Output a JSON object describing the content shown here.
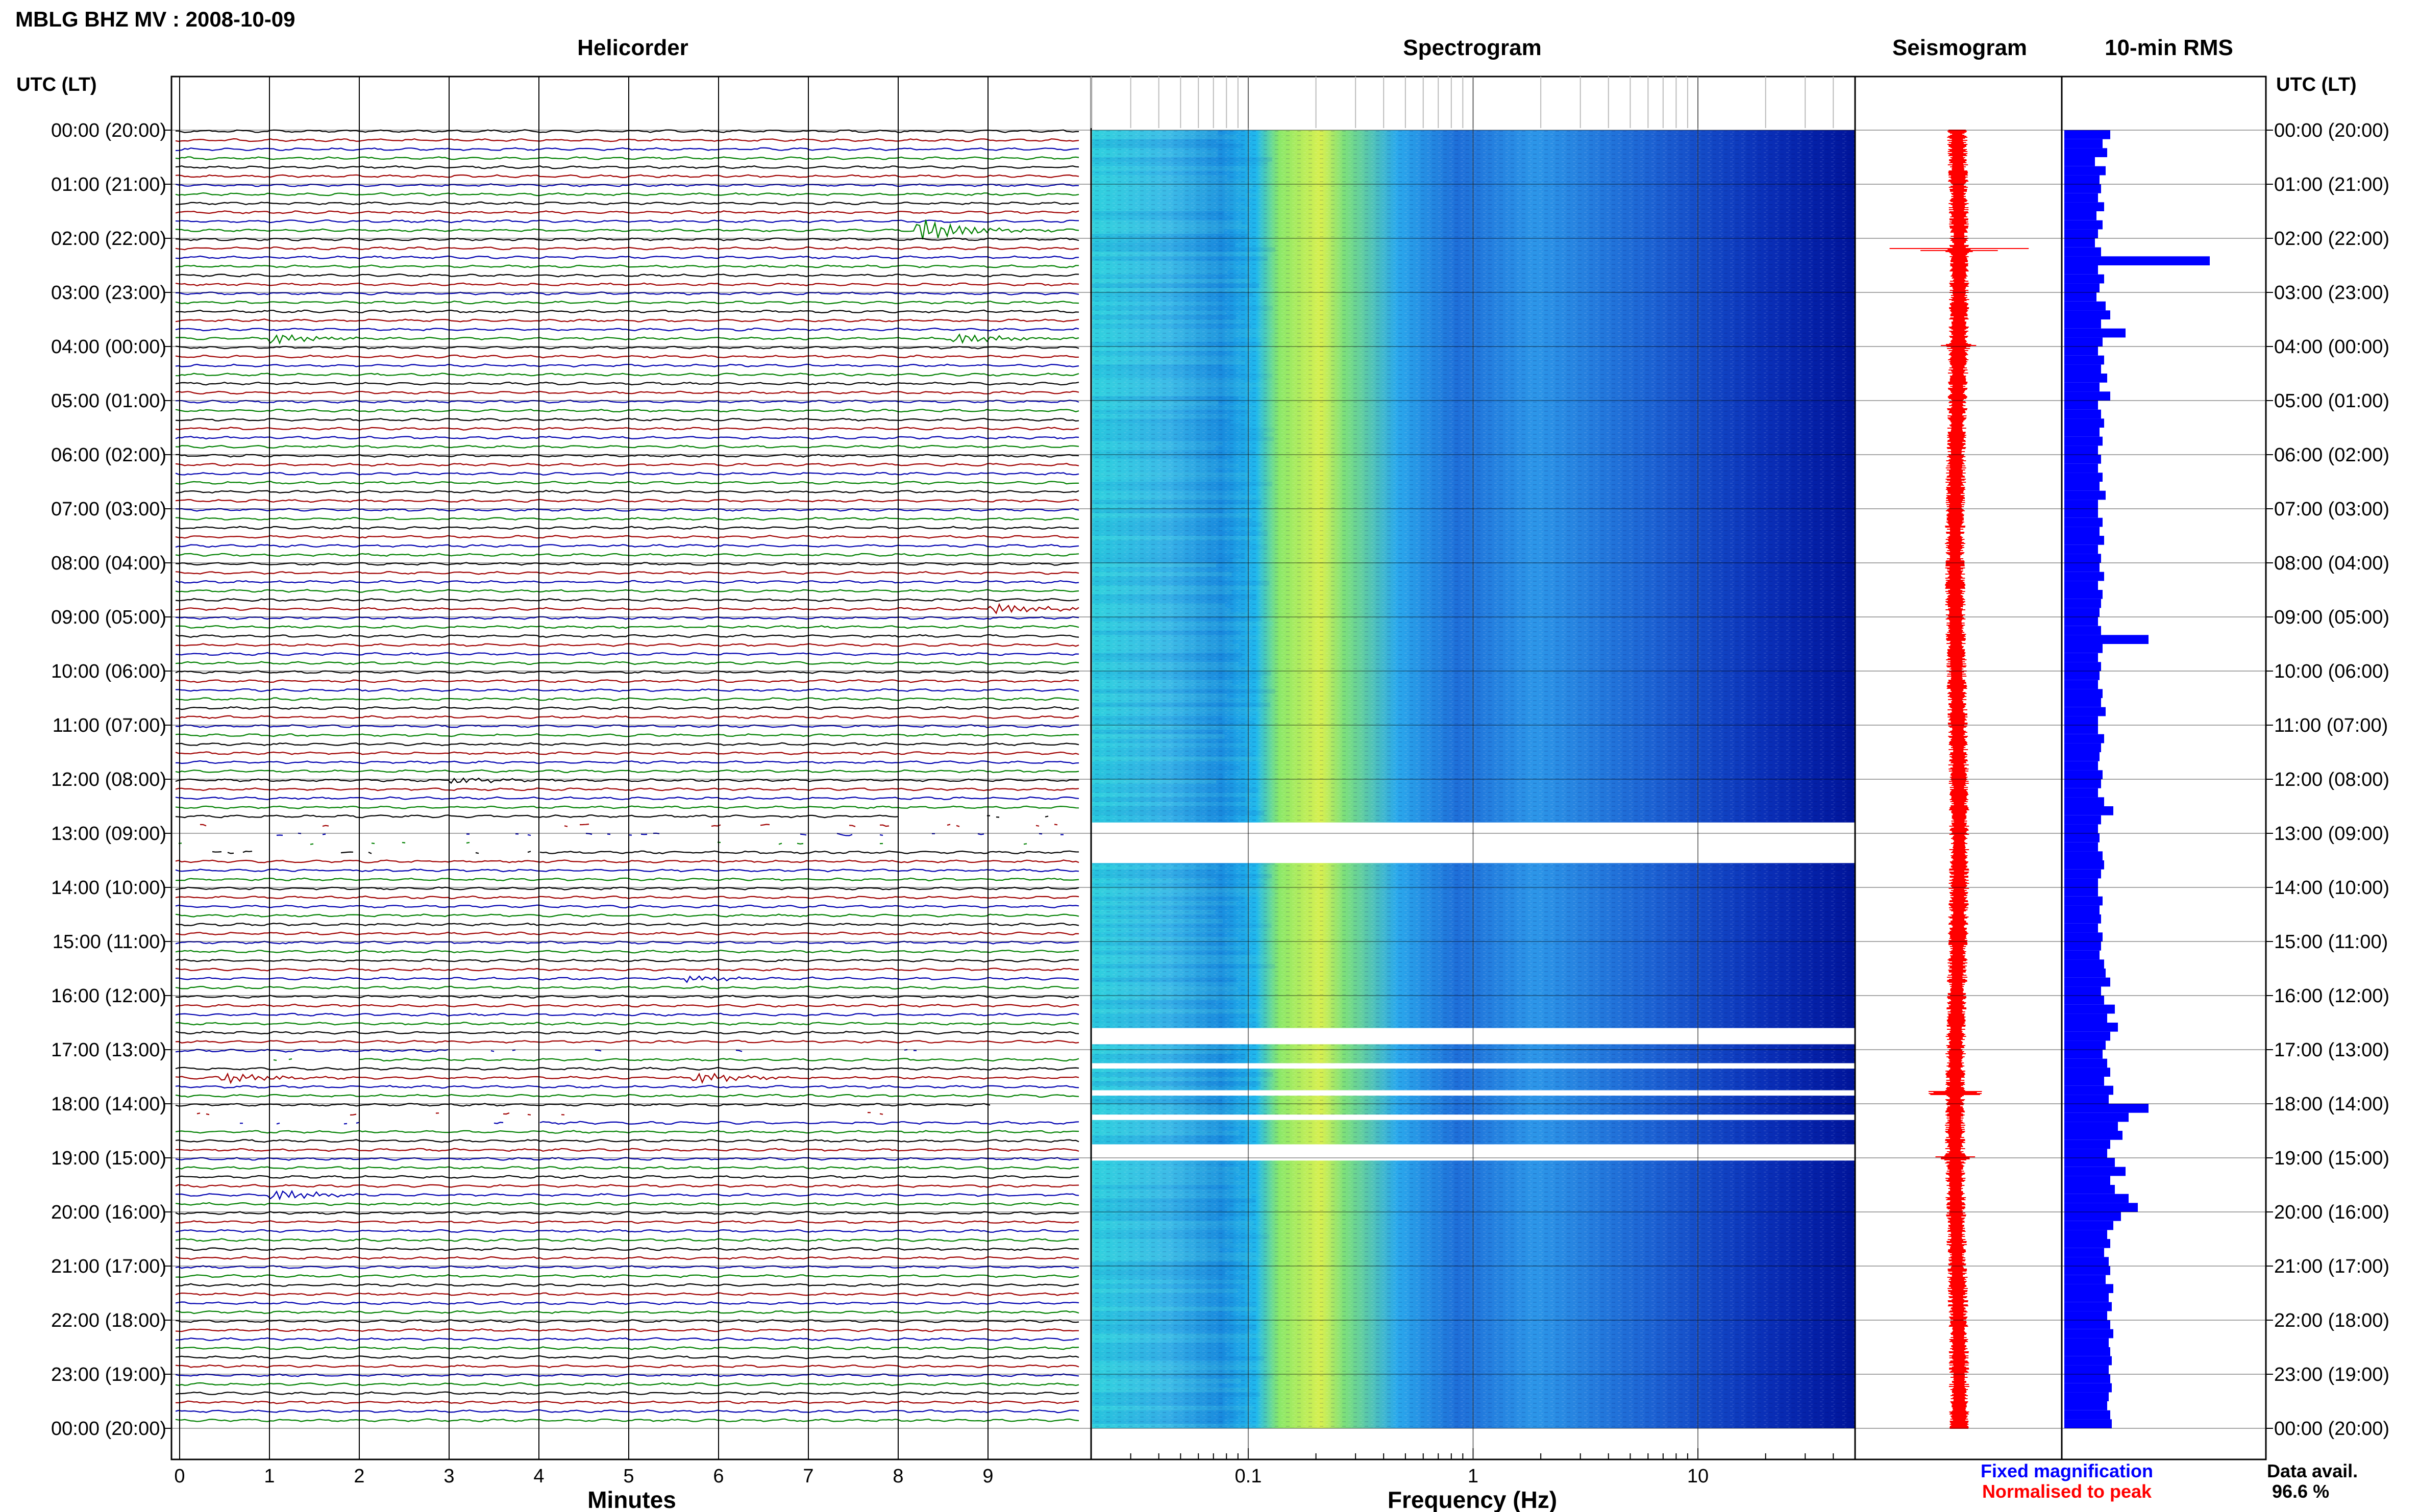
{
  "header": {
    "station_title": "MBLG BHZ MV : 2008-10-09"
  },
  "panels": {
    "helicorder_title": "Helicorder",
    "spectrogram_title": "Spectrogram",
    "seismogram_title": "Seismogram",
    "rms_title": "10-min RMS"
  },
  "time_axis": {
    "left_heading": "UTC (LT)",
    "right_heading": "UTC (LT)",
    "labels": [
      "00:00 (20:00)",
      "01:00 (21:00)",
      "02:00 (22:00)",
      "03:00 (23:00)",
      "04:00 (00:00)",
      "05:00 (01:00)",
      "06:00 (02:00)",
      "07:00 (03:00)",
      "08:00 (04:00)",
      "09:00 (05:00)",
      "10:00 (06:00)",
      "11:00 (07:00)",
      "12:00 (08:00)",
      "13:00 (09:00)",
      "14:00 (10:00)",
      "15:00 (11:00)",
      "16:00 (12:00)",
      "17:00 (13:00)",
      "18:00 (14:00)",
      "19:00 (15:00)",
      "20:00 (16:00)",
      "21:00 (17:00)",
      "22:00 (18:00)",
      "23:00 (19:00)",
      "00:00 (20:00)"
    ]
  },
  "footer": {
    "minutes_label": "Minutes",
    "frequency_label": "Frequency (Hz)",
    "legend_fixed": "Fixed magnification",
    "legend_normalised": "Normalised to peak",
    "data_avail_label": "Data avail.",
    "data_avail_value": "96.6 %"
  },
  "colors": {
    "trace_cycle": [
      "#000000",
      "#a00000",
      "#0000b0",
      "#008000"
    ],
    "seismogram": "#ff0000",
    "rms_bar": "#0000ff",
    "legend_fixed": "#0000ff",
    "legend_normalised": "#ff0000"
  },
  "chart_data": [
    {
      "type": "line",
      "panel": "Helicorder",
      "xlabel": "Minutes",
      "x_ticks": [
        0,
        1,
        2,
        3,
        4,
        5,
        6,
        7,
        8,
        9
      ],
      "xlim": [
        0,
        10
      ],
      "lines_per_hour": 6,
      "hours": 24,
      "gaps_utc_hours": [
        [
          12.8,
          13.4
        ],
        [
          17.05,
          17.2
        ],
        [
          18.15,
          18.4
        ]
      ],
      "events": [
        {
          "hour": 1.9,
          "minute": 8.2,
          "amplitude": "large"
        },
        {
          "hour": 3.9,
          "minute": 8.6,
          "amplitude": "medium"
        },
        {
          "hour": 3.9,
          "minute": 1.0,
          "amplitude": "medium"
        },
        {
          "hour": 8.9,
          "minute": 9.0,
          "amplitude": "medium"
        },
        {
          "hour": 17.6,
          "minute": 0.45,
          "amplitude": "medium"
        },
        {
          "hour": 17.6,
          "minute": 5.7,
          "amplitude": "medium"
        },
        {
          "hour": 19.8,
          "minute": 1.0,
          "amplitude": "medium"
        },
        {
          "hour": 15.8,
          "minute": 5.6,
          "amplitude": "small"
        },
        {
          "hour": 12.0,
          "minute": 3.0,
          "amplitude": "small"
        }
      ]
    },
    {
      "type": "heatmap",
      "panel": "Spectrogram",
      "xlabel": "Frequency (Hz)",
      "x_scale": "log",
      "x_ticks": [
        0.1,
        1,
        10
      ],
      "xlim": [
        0.02,
        50
      ],
      "gaps_utc_hours": [
        [
          12.8,
          13.55
        ],
        [
          16.6,
          16.9
        ],
        [
          17.25,
          17.35
        ],
        [
          17.75,
          17.85
        ],
        [
          18.2,
          18.3
        ],
        [
          18.75,
          19.05
        ]
      ]
    },
    {
      "type": "line",
      "panel": "Seismogram",
      "normalised": true,
      "spikes": [
        {
          "hour": 2.2,
          "amplitude": 0.95
        },
        {
          "hour": 9.3,
          "amplitude": 0.3
        },
        {
          "hour": 17.8,
          "amplitude": 0.8
        },
        {
          "hour": 4.0,
          "amplitude": 0.2
        },
        {
          "hour": 19.0,
          "amplitude": 0.25
        }
      ]
    },
    {
      "type": "bar",
      "panel": "10-min RMS",
      "orientation": "horizontal",
      "bin_minutes": 10,
      "values": [
        0.3,
        0.25,
        0.28,
        0.2,
        0.27,
        0.23,
        0.24,
        0.22,
        0.26,
        0.21,
        0.25,
        0.22,
        0.2,
        0.24,
        0.95,
        0.22,
        0.26,
        0.23,
        0.21,
        0.27,
        0.3,
        0.24,
        0.4,
        0.25,
        0.22,
        0.26,
        0.24,
        0.28,
        0.23,
        0.3,
        0.22,
        0.24,
        0.26,
        0.23,
        0.25,
        0.22,
        0.24,
        0.22,
        0.25,
        0.23,
        0.27,
        0.22,
        0.22,
        0.25,
        0.23,
        0.26,
        0.22,
        0.24,
        0.23,
        0.26,
        0.22,
        0.25,
        0.24,
        0.23,
        0.22,
        0.24,
        0.55,
        0.25,
        0.22,
        0.24,
        0.23,
        0.22,
        0.25,
        0.24,
        0.27,
        0.22,
        0.22,
        0.26,
        0.24,
        0.23,
        0.22,
        0.25,
        0.24,
        0.22,
        0.26,
        0.32,
        0.24,
        0.22,
        0.23,
        0.22,
        0.25,
        0.26,
        0.24,
        0.22,
        0.22,
        0.25,
        0.23,
        0.24,
        0.22,
        0.25,
        0.24,
        0.23,
        0.26,
        0.27,
        0.3,
        0.24,
        0.26,
        0.33,
        0.28,
        0.35,
        0.3,
        0.27,
        0.25,
        0.28,
        0.3,
        0.26,
        0.32,
        0.29,
        0.55,
        0.42,
        0.35,
        0.38,
        0.3,
        0.28,
        0.33,
        0.4,
        0.3,
        0.33,
        0.42,
        0.48,
        0.37,
        0.32,
        0.28,
        0.3,
        0.26,
        0.29,
        0.3,
        0.27,
        0.32,
        0.29,
        0.31,
        0.28,
        0.3,
        0.32,
        0.29,
        0.3,
        0.31,
        0.29,
        0.3,
        0.31,
        0.29,
        0.28,
        0.3,
        0.31
      ]
    }
  ]
}
